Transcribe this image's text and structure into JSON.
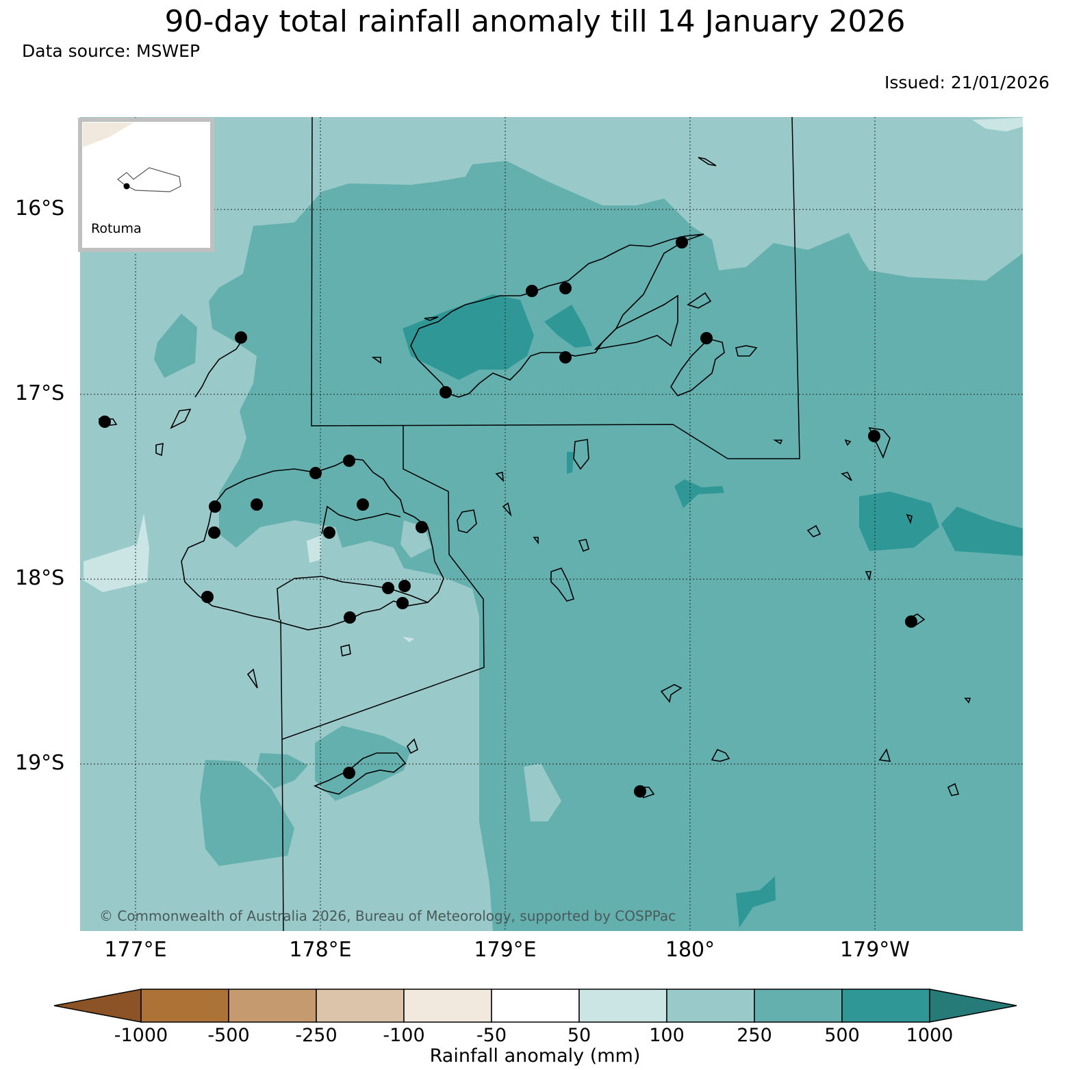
{
  "header": {
    "title": "90-day total rainfall anomaly till 14 January 2026",
    "data_source": "Data source: MSWEP",
    "issued": "Issued: 21/01/2026"
  },
  "map": {
    "latitude_labels": [
      "16°S",
      "17°S",
      "18°S",
      "19°S"
    ],
    "longitude_labels": [
      "177°E",
      "178°E",
      "179°E",
      "180°",
      "179°W"
    ],
    "inset_label": "Rotuma",
    "copyright": "© Commonwealth of Australia 2026, Bureau of Meteorology, supported by COSPPac"
  },
  "colorbar": {
    "title": "Rainfall anomaly (mm)",
    "ticks": [
      "-1000",
      "-500",
      "-250",
      "-100",
      "-50",
      "50",
      "100",
      "250",
      "500",
      "1000"
    ],
    "colors": [
      "#8c5426",
      "#ad7236",
      "#c49a6e",
      "#dcc4ab",
      "#f1e8de",
      "#ffffff",
      "#cbe5e5",
      "#99c9c9",
      "#63b0af",
      "#2f9896",
      "#267a78"
    ]
  }
}
